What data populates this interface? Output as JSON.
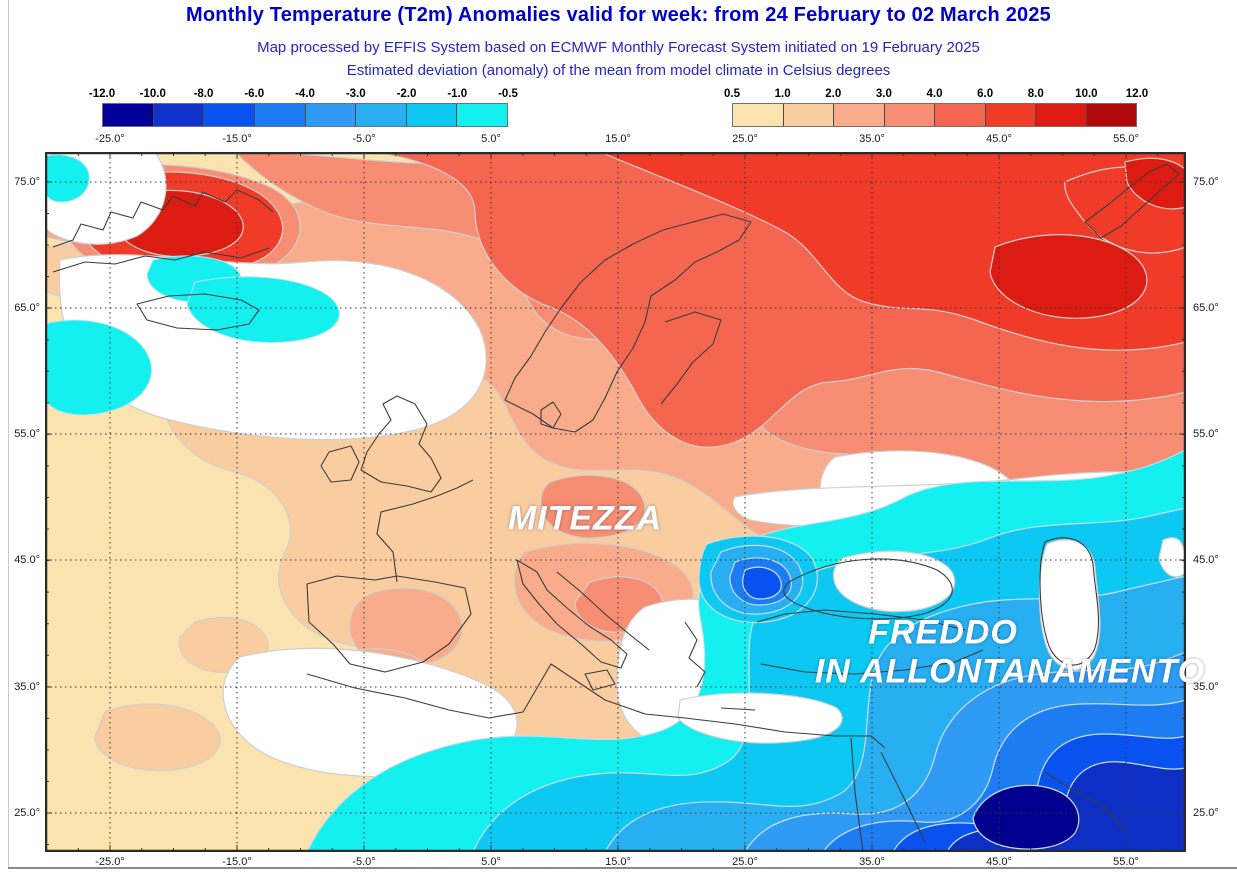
{
  "header": {
    "title": "Monthly Temperature (T2m) Anomalies valid for week: from 24 February to 02 March 2025",
    "subtitle1": "Map processed by EFFIS System based on ECMWF Monthly Forecast System initiated on 19 February 2025",
    "subtitle2": "Estimated deviation (anomaly) of the mean from model climate in Celsius degrees"
  },
  "legend": {
    "units": "Celsius degrees anomaly",
    "negative": {
      "tick_labels": [
        "-12.0",
        "-10.0",
        "-8.0",
        "-6.0",
        "-4.0",
        "-3.0",
        "-2.0",
        "-1.0",
        "-0.5"
      ],
      "colors": [
        "#000096",
        "#1133cc",
        "#0a52f0",
        "#1e7cf2",
        "#2f9bf5",
        "#27aff2",
        "#0cc8f2",
        "#14f0f0"
      ]
    },
    "positive": {
      "tick_labels": [
        "0.5",
        "1.0",
        "2.0",
        "3.0",
        "4.0",
        "6.0",
        "8.0",
        "10.0",
        "12.0"
      ],
      "colors": [
        "#fbe3af",
        "#facda0",
        "#f9ac8b",
        "#f78d72",
        "#f56651",
        "#ef3b28",
        "#dc1c12",
        "#b00b0a"
      ]
    }
  },
  "axes": {
    "longitude_labels": [
      "-25.0°",
      "-15.0°",
      "-5.0°",
      "5.0°",
      "15.0°",
      "25.0°",
      "35.0°",
      "45.0°",
      "55.0°"
    ],
    "latitude_labels": [
      "75.0°",
      "65.0°",
      "55.0°",
      "45.0°",
      "35.0°",
      "25.0°"
    ]
  },
  "map": {
    "annotations": [
      {
        "text": "MITEZZA"
      },
      {
        "text": "FREDDO"
      },
      {
        "text": "IN ALLONTANAMENTO"
      }
    ]
  }
}
